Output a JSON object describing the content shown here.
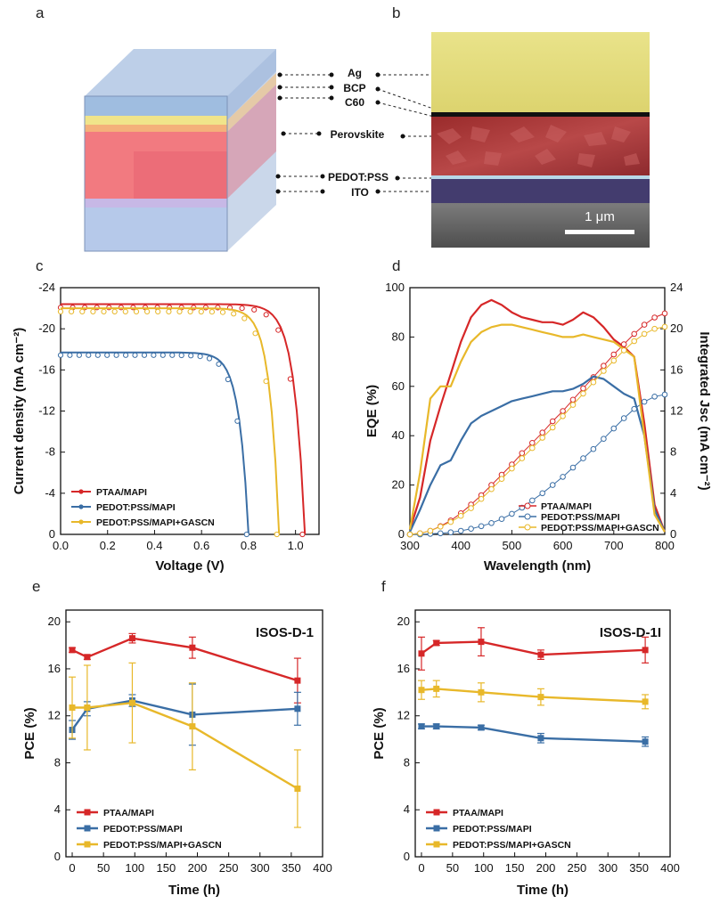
{
  "panel_letters": {
    "a": "a",
    "b": "b",
    "c": "c",
    "d": "d",
    "e": "e",
    "f": "f"
  },
  "layers": [
    "Ag",
    "BCP",
    "C60",
    "Perovskite",
    "PEDOT:PSS",
    "ITO"
  ],
  "scale_bar": "1 μm",
  "colors": {
    "ptaa": "#d62728",
    "pedot": "#3a6ea5",
    "gascn": "#e8b82a"
  },
  "chart_data": [
    {
      "panel": "c",
      "type": "line",
      "xlabel": "Voltage (V)",
      "ylabel": "Current density (mA cm⁻²)",
      "xlim": [
        0.0,
        1.1
      ],
      "ylim": [
        0,
        -24
      ],
      "xticks": [
        "0.0",
        "0.2",
        "0.4",
        "0.6",
        "0.8",
        "1.0"
      ],
      "yticks": [
        "-24",
        "-20",
        "-16",
        "-12",
        "-8",
        "-4",
        "0"
      ],
      "series": [
        {
          "name": "PTAA/MAPI",
          "color": "#d62728",
          "jsc": -22.4,
          "voc": 1.04,
          "rs_knee": 0.055,
          "softness": 0.045
        },
        {
          "name": "PEDOT:PSS/MAPI",
          "color": "#3a6ea5",
          "jsc": -17.7,
          "voc": 0.8,
          "rs_knee": 0.06,
          "softness": 0.04
        },
        {
          "name": "PEDOT:PSS/MAPI+GASCN",
          "color": "#e8b82a",
          "jsc": -22.0,
          "voc": 0.93,
          "rs_knee": 0.06,
          "softness": 0.04
        }
      ]
    },
    {
      "panel": "d",
      "type": "line",
      "xlabel": "Wavelength (nm)",
      "ylabel": "EQE (%)",
      "y2label": "Integrated Jsc (mA cm⁻²)",
      "xlim": [
        300,
        800
      ],
      "ylim": [
        0,
        100
      ],
      "y2lim": [
        0,
        24
      ],
      "xticks": [
        "300",
        "400",
        "500",
        "600",
        "700",
        "800"
      ],
      "yticks": [
        "0",
        "20",
        "40",
        "60",
        "80",
        "100"
      ],
      "y2ticks": [
        "0",
        "4",
        "8",
        "12",
        "16",
        "20",
        "24"
      ],
      "series": [
        {
          "name": "PTAA/MAPI",
          "color": "#d62728",
          "x": [
            300,
            320,
            340,
            360,
            380,
            400,
            420,
            440,
            460,
            480,
            500,
            520,
            540,
            560,
            580,
            600,
            620,
            640,
            660,
            680,
            700,
            720,
            740,
            760,
            780,
            800
          ],
          "eqe": [
            2,
            15,
            38,
            52,
            65,
            78,
            88,
            93,
            95,
            93,
            90,
            88,
            87,
            86,
            86,
            85,
            87,
            90,
            88,
            84,
            79,
            76,
            72,
            45,
            12,
            1
          ],
          "jsc": [
            0.0,
            0.1,
            0.35,
            0.8,
            1.35,
            2.05,
            2.9,
            3.8,
            4.8,
            5.8,
            6.8,
            7.9,
            8.9,
            9.9,
            11.0,
            12.0,
            13.1,
            14.2,
            15.3,
            16.4,
            17.5,
            18.5,
            19.5,
            20.4,
            21.1,
            21.5
          ]
        },
        {
          "name": "PEDOT:PSS/MAPI",
          "color": "#3a6ea5",
          "x": [
            300,
            320,
            340,
            360,
            380,
            400,
            420,
            440,
            460,
            480,
            500,
            520,
            540,
            560,
            580,
            600,
            620,
            640,
            660,
            680,
            700,
            720,
            740,
            760,
            780,
            800
          ],
          "eqe": [
            1,
            10,
            20,
            28,
            30,
            38,
            45,
            48,
            50,
            52,
            54,
            55,
            56,
            57,
            58,
            58,
            59,
            61,
            64,
            63,
            60,
            57,
            55,
            40,
            10,
            1
          ],
          "jsc": [
            0.0,
            0.0,
            0.05,
            0.1,
            0.2,
            0.35,
            0.55,
            0.8,
            1.1,
            1.5,
            2.0,
            2.6,
            3.3,
            4.0,
            4.8,
            5.6,
            6.5,
            7.4,
            8.3,
            9.3,
            10.3,
            11.3,
            12.2,
            12.9,
            13.4,
            13.6
          ]
        },
        {
          "name": "PEDOT:PSS/MAPI+GASCN",
          "color": "#e8b82a",
          "x": [
            300,
            320,
            340,
            360,
            380,
            400,
            420,
            440,
            460,
            480,
            500,
            520,
            540,
            560,
            580,
            600,
            620,
            640,
            660,
            680,
            700,
            720,
            740,
            760,
            780,
            800
          ],
          "eqe": [
            2,
            25,
            55,
            60,
            60,
            70,
            78,
            82,
            84,
            85,
            85,
            84,
            83,
            82,
            81,
            80,
            80,
            81,
            80,
            79,
            78,
            75,
            72,
            40,
            8,
            1
          ],
          "jsc": [
            0.0,
            0.1,
            0.35,
            0.75,
            1.2,
            1.8,
            2.55,
            3.45,
            4.4,
            5.4,
            6.4,
            7.4,
            8.4,
            9.4,
            10.4,
            11.5,
            12.6,
            13.7,
            14.8,
            15.9,
            16.9,
            17.9,
            18.8,
            19.5,
            20.0,
            20.2
          ]
        }
      ]
    },
    {
      "panel": "e",
      "type": "line",
      "annotation": "ISOS-D-1",
      "xlabel": "Time (h)",
      "ylabel": "PCE (%)",
      "xlim": [
        -10,
        400
      ],
      "ylim": [
        0,
        21
      ],
      "xticks": [
        "0",
        "50",
        "100",
        "150",
        "200",
        "250",
        "300",
        "350",
        "400"
      ],
      "yticks": [
        "0",
        "4",
        "8",
        "12",
        "16",
        "20"
      ],
      "series": [
        {
          "name": "PTAA/MAPI",
          "color": "#d62728",
          "x": [
            0,
            24,
            96,
            192,
            360
          ],
          "y": [
            17.6,
            17.0,
            18.6,
            17.8,
            15.0
          ],
          "err": [
            0.2,
            0.2,
            0.4,
            0.9,
            1.9
          ]
        },
        {
          "name": "PEDOT:PSS/MAPI",
          "color": "#3a6ea5",
          "x": [
            0,
            24,
            96,
            192,
            360
          ],
          "y": [
            10.8,
            12.6,
            13.3,
            12.1,
            12.6
          ],
          "err": [
            0.8,
            0.6,
            0.5,
            2.6,
            1.4
          ]
        },
        {
          "name": "PEDOT:PSS/MAPI+GASCN",
          "color": "#e8b82a",
          "x": [
            0,
            24,
            96,
            192,
            360
          ],
          "y": [
            12.7,
            12.7,
            13.1,
            11.1,
            5.8
          ],
          "err": [
            2.6,
            3.6,
            3.4,
            3.7,
            3.3
          ]
        }
      ]
    },
    {
      "panel": "f",
      "type": "line",
      "annotation": "ISOS-D-1I",
      "xlabel": "Time (h)",
      "ylabel": "PCE (%)",
      "xlim": [
        -10,
        400
      ],
      "ylim": [
        0,
        21
      ],
      "xticks": [
        "0",
        "50",
        "100",
        "150",
        "200",
        "250",
        "300",
        "350",
        "400"
      ],
      "yticks": [
        "0",
        "4",
        "8",
        "12",
        "16",
        "20"
      ],
      "series": [
        {
          "name": "PTAA/MAPI",
          "color": "#d62728",
          "x": [
            0,
            24,
            96,
            192,
            360
          ],
          "y": [
            17.3,
            18.2,
            18.3,
            17.2,
            17.6
          ],
          "err": [
            1.4,
            0.2,
            1.2,
            0.4,
            1.1
          ]
        },
        {
          "name": "PEDOT:PSS/MAPI",
          "color": "#3a6ea5",
          "x": [
            0,
            24,
            96,
            192,
            360
          ],
          "y": [
            11.1,
            11.1,
            11.0,
            10.1,
            9.8
          ],
          "err": [
            0.2,
            0.2,
            0.2,
            0.4,
            0.4
          ]
        },
        {
          "name": "PEDOT:PSS/MAPI+GASCN",
          "color": "#e8b82a",
          "x": [
            0,
            24,
            96,
            192,
            360
          ],
          "y": [
            14.2,
            14.3,
            14.0,
            13.6,
            13.2
          ],
          "err": [
            0.8,
            0.7,
            0.8,
            0.7,
            0.6
          ]
        }
      ]
    }
  ]
}
